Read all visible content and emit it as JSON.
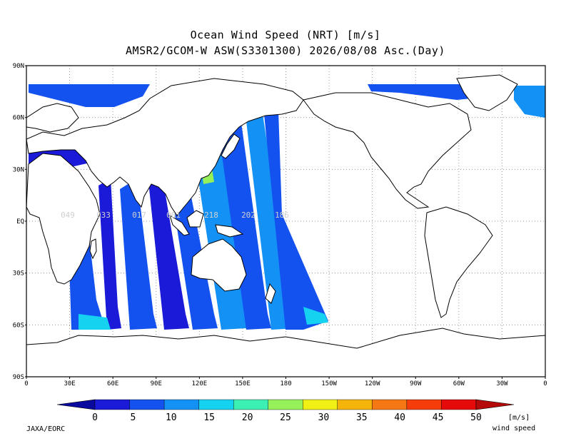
{
  "title_line1": "Ocean Wind Speed (NRT) [m/s]",
  "title_line2": "AMSR2/GCOM-W ASW(S3301300) 2026/08/08 Asc.(Day)",
  "lat_labels": [
    "90N",
    "60N",
    "30N",
    "EQ",
    "30S",
    "60S",
    "90S"
  ],
  "lon_labels": [
    "0",
    "30E",
    "60E",
    "90E",
    "120E",
    "150E",
    "180",
    "150W",
    "120W",
    "90W",
    "60W",
    "30W",
    "0"
  ],
  "orbit_labels": [
    "049",
    "033",
    "017",
    "001",
    "218",
    "202",
    "186"
  ],
  "colorbar": {
    "ticks": [
      "0",
      "5",
      "10",
      "15",
      "20",
      "25",
      "30",
      "35",
      "40",
      "45",
      "50"
    ],
    "colors": [
      "#1a1ad8",
      "#1452f0",
      "#1491f5",
      "#14d2f0",
      "#3cf0b4",
      "#96f05a",
      "#f0f014",
      "#f5b40a",
      "#f57814",
      "#f53c0a",
      "#e60a0a"
    ],
    "under_color": "#0a0a9e",
    "over_color": "#b40a0a",
    "unit": "[m/s]",
    "unit_label": "wind speed"
  },
  "credit": "JAXA/EORC"
}
